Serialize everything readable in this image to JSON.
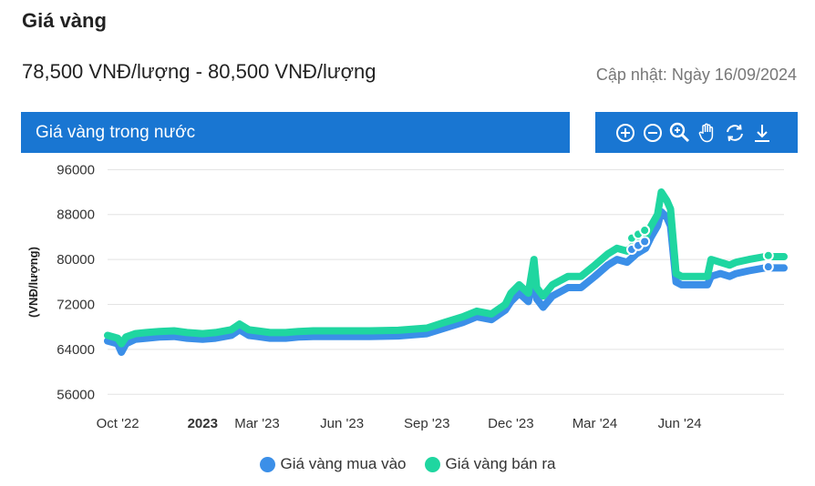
{
  "header": {
    "title": "Giá vàng",
    "price_range": "78,500 VNĐ/lượng - 80,500 VNĐ/lượng",
    "updated": "Cập nhật: Ngày 16/09/2024"
  },
  "chart_panel": {
    "title": "Giá vàng trong nước",
    "accent_color": "#1976d2",
    "toolbar_icons": [
      "zoom-in-icon",
      "zoom-out-icon",
      "magnifier-icon",
      "pan-hand-icon",
      "reset-icon",
      "download-icon"
    ]
  },
  "chart_data": {
    "type": "area",
    "title": "",
    "ylabel": "(VNĐ/lượng)",
    "xlabel": "",
    "ylim": [
      52000,
      98000
    ],
    "xlim": [
      "2022-09-20",
      "2024-09-22"
    ],
    "yticks": [
      56000,
      64000,
      72000,
      80000,
      88000,
      96000
    ],
    "ytick_labels": [
      "56000",
      "64000",
      "72000",
      "80000",
      "88000",
      "96000"
    ],
    "xticks": [
      {
        "date": "2022-10-01",
        "label": "Oct '22",
        "bold": false
      },
      {
        "date": "2023-01-01",
        "label": "2023",
        "bold": true
      },
      {
        "date": "2023-03-01",
        "label": "Mar '23",
        "bold": false
      },
      {
        "date": "2023-06-01",
        "label": "Jun '23",
        "bold": false
      },
      {
        "date": "2023-09-01",
        "label": "Sep '23",
        "bold": false
      },
      {
        "date": "2023-12-01",
        "label": "Dec '23",
        "bold": false
      },
      {
        "date": "2024-03-01",
        "label": "Mar '24",
        "bold": false
      },
      {
        "date": "2024-06-01",
        "label": "Jun '24",
        "bold": false
      }
    ],
    "grid": true,
    "legend_position": "bottom",
    "series": [
      {
        "name": "Giá vàng mua vào",
        "color": "#3b8fe8",
        "points": [
          [
            "2022-09-20",
            65500
          ],
          [
            "2022-10-01",
            65000
          ],
          [
            "2022-10-05",
            63500
          ],
          [
            "2022-10-10",
            65000
          ],
          [
            "2022-10-20",
            65800
          ],
          [
            "2022-11-01",
            66000
          ],
          [
            "2022-11-15",
            66200
          ],
          [
            "2022-12-01",
            66300
          ],
          [
            "2022-12-15",
            66000
          ],
          [
            "2023-01-01",
            65800
          ],
          [
            "2023-01-15",
            66000
          ],
          [
            "2023-02-01",
            66500
          ],
          [
            "2023-02-10",
            67500
          ],
          [
            "2023-02-20",
            66500
          ],
          [
            "2023-03-01",
            66300
          ],
          [
            "2023-03-15",
            66000
          ],
          [
            "2023-04-01",
            66000
          ],
          [
            "2023-04-15",
            66200
          ],
          [
            "2023-05-01",
            66300
          ],
          [
            "2023-06-01",
            66300
          ],
          [
            "2023-07-01",
            66300
          ],
          [
            "2023-08-01",
            66400
          ],
          [
            "2023-09-01",
            66800
          ],
          [
            "2023-09-20",
            67800
          ],
          [
            "2023-10-10",
            68800
          ],
          [
            "2023-10-25",
            69800
          ],
          [
            "2023-11-10",
            69300
          ],
          [
            "2023-11-25",
            71000
          ],
          [
            "2023-12-01",
            72500
          ],
          [
            "2023-12-10",
            74000
          ],
          [
            "2023-12-20",
            72500
          ],
          [
            "2023-12-26",
            78000
          ],
          [
            "2023-12-29",
            73000
          ],
          [
            "2024-01-05",
            71500
          ],
          [
            "2024-01-15",
            73500
          ],
          [
            "2024-02-01",
            75000
          ],
          [
            "2024-02-15",
            75000
          ],
          [
            "2024-03-01",
            77000
          ],
          [
            "2024-03-15",
            79000
          ],
          [
            "2024-03-25",
            80000
          ],
          [
            "2024-04-05",
            79500
          ],
          [
            "2024-04-15",
            81000
          ],
          [
            "2024-04-25",
            82000
          ],
          [
            "2024-05-01",
            84000
          ],
          [
            "2024-05-08",
            86000
          ],
          [
            "2024-05-12",
            88500
          ],
          [
            "2024-05-18",
            87500
          ],
          [
            "2024-05-22",
            86000
          ],
          [
            "2024-05-28",
            76000
          ],
          [
            "2024-06-03",
            75500
          ],
          [
            "2024-06-20",
            75500
          ],
          [
            "2024-07-01",
            75500
          ],
          [
            "2024-07-05",
            77000
          ],
          [
            "2024-07-15",
            77500
          ],
          [
            "2024-07-25",
            77000
          ],
          [
            "2024-08-01",
            77500
          ],
          [
            "2024-08-15",
            78000
          ],
          [
            "2024-09-01",
            78500
          ],
          [
            "2024-09-16",
            78500
          ],
          [
            "2024-09-22",
            78500
          ]
        ]
      },
      {
        "name": "Giá vàng bán ra",
        "color": "#1fd6a0",
        "points": [
          [
            "2022-09-20",
            66500
          ],
          [
            "2022-10-01",
            66000
          ],
          [
            "2022-10-05",
            65000
          ],
          [
            "2022-10-10",
            66200
          ],
          [
            "2022-10-20",
            66800
          ],
          [
            "2022-11-01",
            67000
          ],
          [
            "2022-11-15",
            67200
          ],
          [
            "2022-12-01",
            67300
          ],
          [
            "2022-12-15",
            67000
          ],
          [
            "2023-01-01",
            66800
          ],
          [
            "2023-01-15",
            67000
          ],
          [
            "2023-02-01",
            67500
          ],
          [
            "2023-02-10",
            68500
          ],
          [
            "2023-02-20",
            67500
          ],
          [
            "2023-03-01",
            67300
          ],
          [
            "2023-03-15",
            67000
          ],
          [
            "2023-04-01",
            67000
          ],
          [
            "2023-04-15",
            67200
          ],
          [
            "2023-05-01",
            67300
          ],
          [
            "2023-06-01",
            67300
          ],
          [
            "2023-07-01",
            67300
          ],
          [
            "2023-08-01",
            67400
          ],
          [
            "2023-09-01",
            67800
          ],
          [
            "2023-09-20",
            68800
          ],
          [
            "2023-10-10",
            69800
          ],
          [
            "2023-10-25",
            70800
          ],
          [
            "2023-11-10",
            70300
          ],
          [
            "2023-11-25",
            72000
          ],
          [
            "2023-12-01",
            74000
          ],
          [
            "2023-12-10",
            75500
          ],
          [
            "2023-12-20",
            74000
          ],
          [
            "2023-12-26",
            80000
          ],
          [
            "2023-12-29",
            75000
          ],
          [
            "2024-01-05",
            73500
          ],
          [
            "2024-01-15",
            75500
          ],
          [
            "2024-02-01",
            77000
          ],
          [
            "2024-02-15",
            77000
          ],
          [
            "2024-03-01",
            79000
          ],
          [
            "2024-03-15",
            81000
          ],
          [
            "2024-03-25",
            82000
          ],
          [
            "2024-04-05",
            81500
          ],
          [
            "2024-04-15",
            83000
          ],
          [
            "2024-04-25",
            84000
          ],
          [
            "2024-05-01",
            86000
          ],
          [
            "2024-05-08",
            88000
          ],
          [
            "2024-05-12",
            92000
          ],
          [
            "2024-05-18",
            90500
          ],
          [
            "2024-05-22",
            89000
          ],
          [
            "2024-05-28",
            77500
          ],
          [
            "2024-06-03",
            77000
          ],
          [
            "2024-06-20",
            77000
          ],
          [
            "2024-07-01",
            77000
          ],
          [
            "2024-07-05",
            80000
          ],
          [
            "2024-07-15",
            79500
          ],
          [
            "2024-07-25",
            79000
          ],
          [
            "2024-08-01",
            79500
          ],
          [
            "2024-08-15",
            80000
          ],
          [
            "2024-09-01",
            80500
          ],
          [
            "2024-09-16",
            80500
          ],
          [
            "2024-09-22",
            80500
          ]
        ]
      }
    ],
    "markers": [
      {
        "series": 0,
        "date": "2024-04-10",
        "value": 81800
      },
      {
        "series": 0,
        "date": "2024-04-17",
        "value": 82500
      },
      {
        "series": 0,
        "date": "2024-04-24",
        "value": 83200
      },
      {
        "series": 0,
        "date": "2024-09-05",
        "value": 78700
      },
      {
        "series": 1,
        "date": "2024-04-10",
        "value": 83800
      },
      {
        "series": 1,
        "date": "2024-04-17",
        "value": 84500
      },
      {
        "series": 1,
        "date": "2024-04-24",
        "value": 85200
      },
      {
        "series": 1,
        "date": "2024-09-05",
        "value": 80700
      }
    ]
  }
}
